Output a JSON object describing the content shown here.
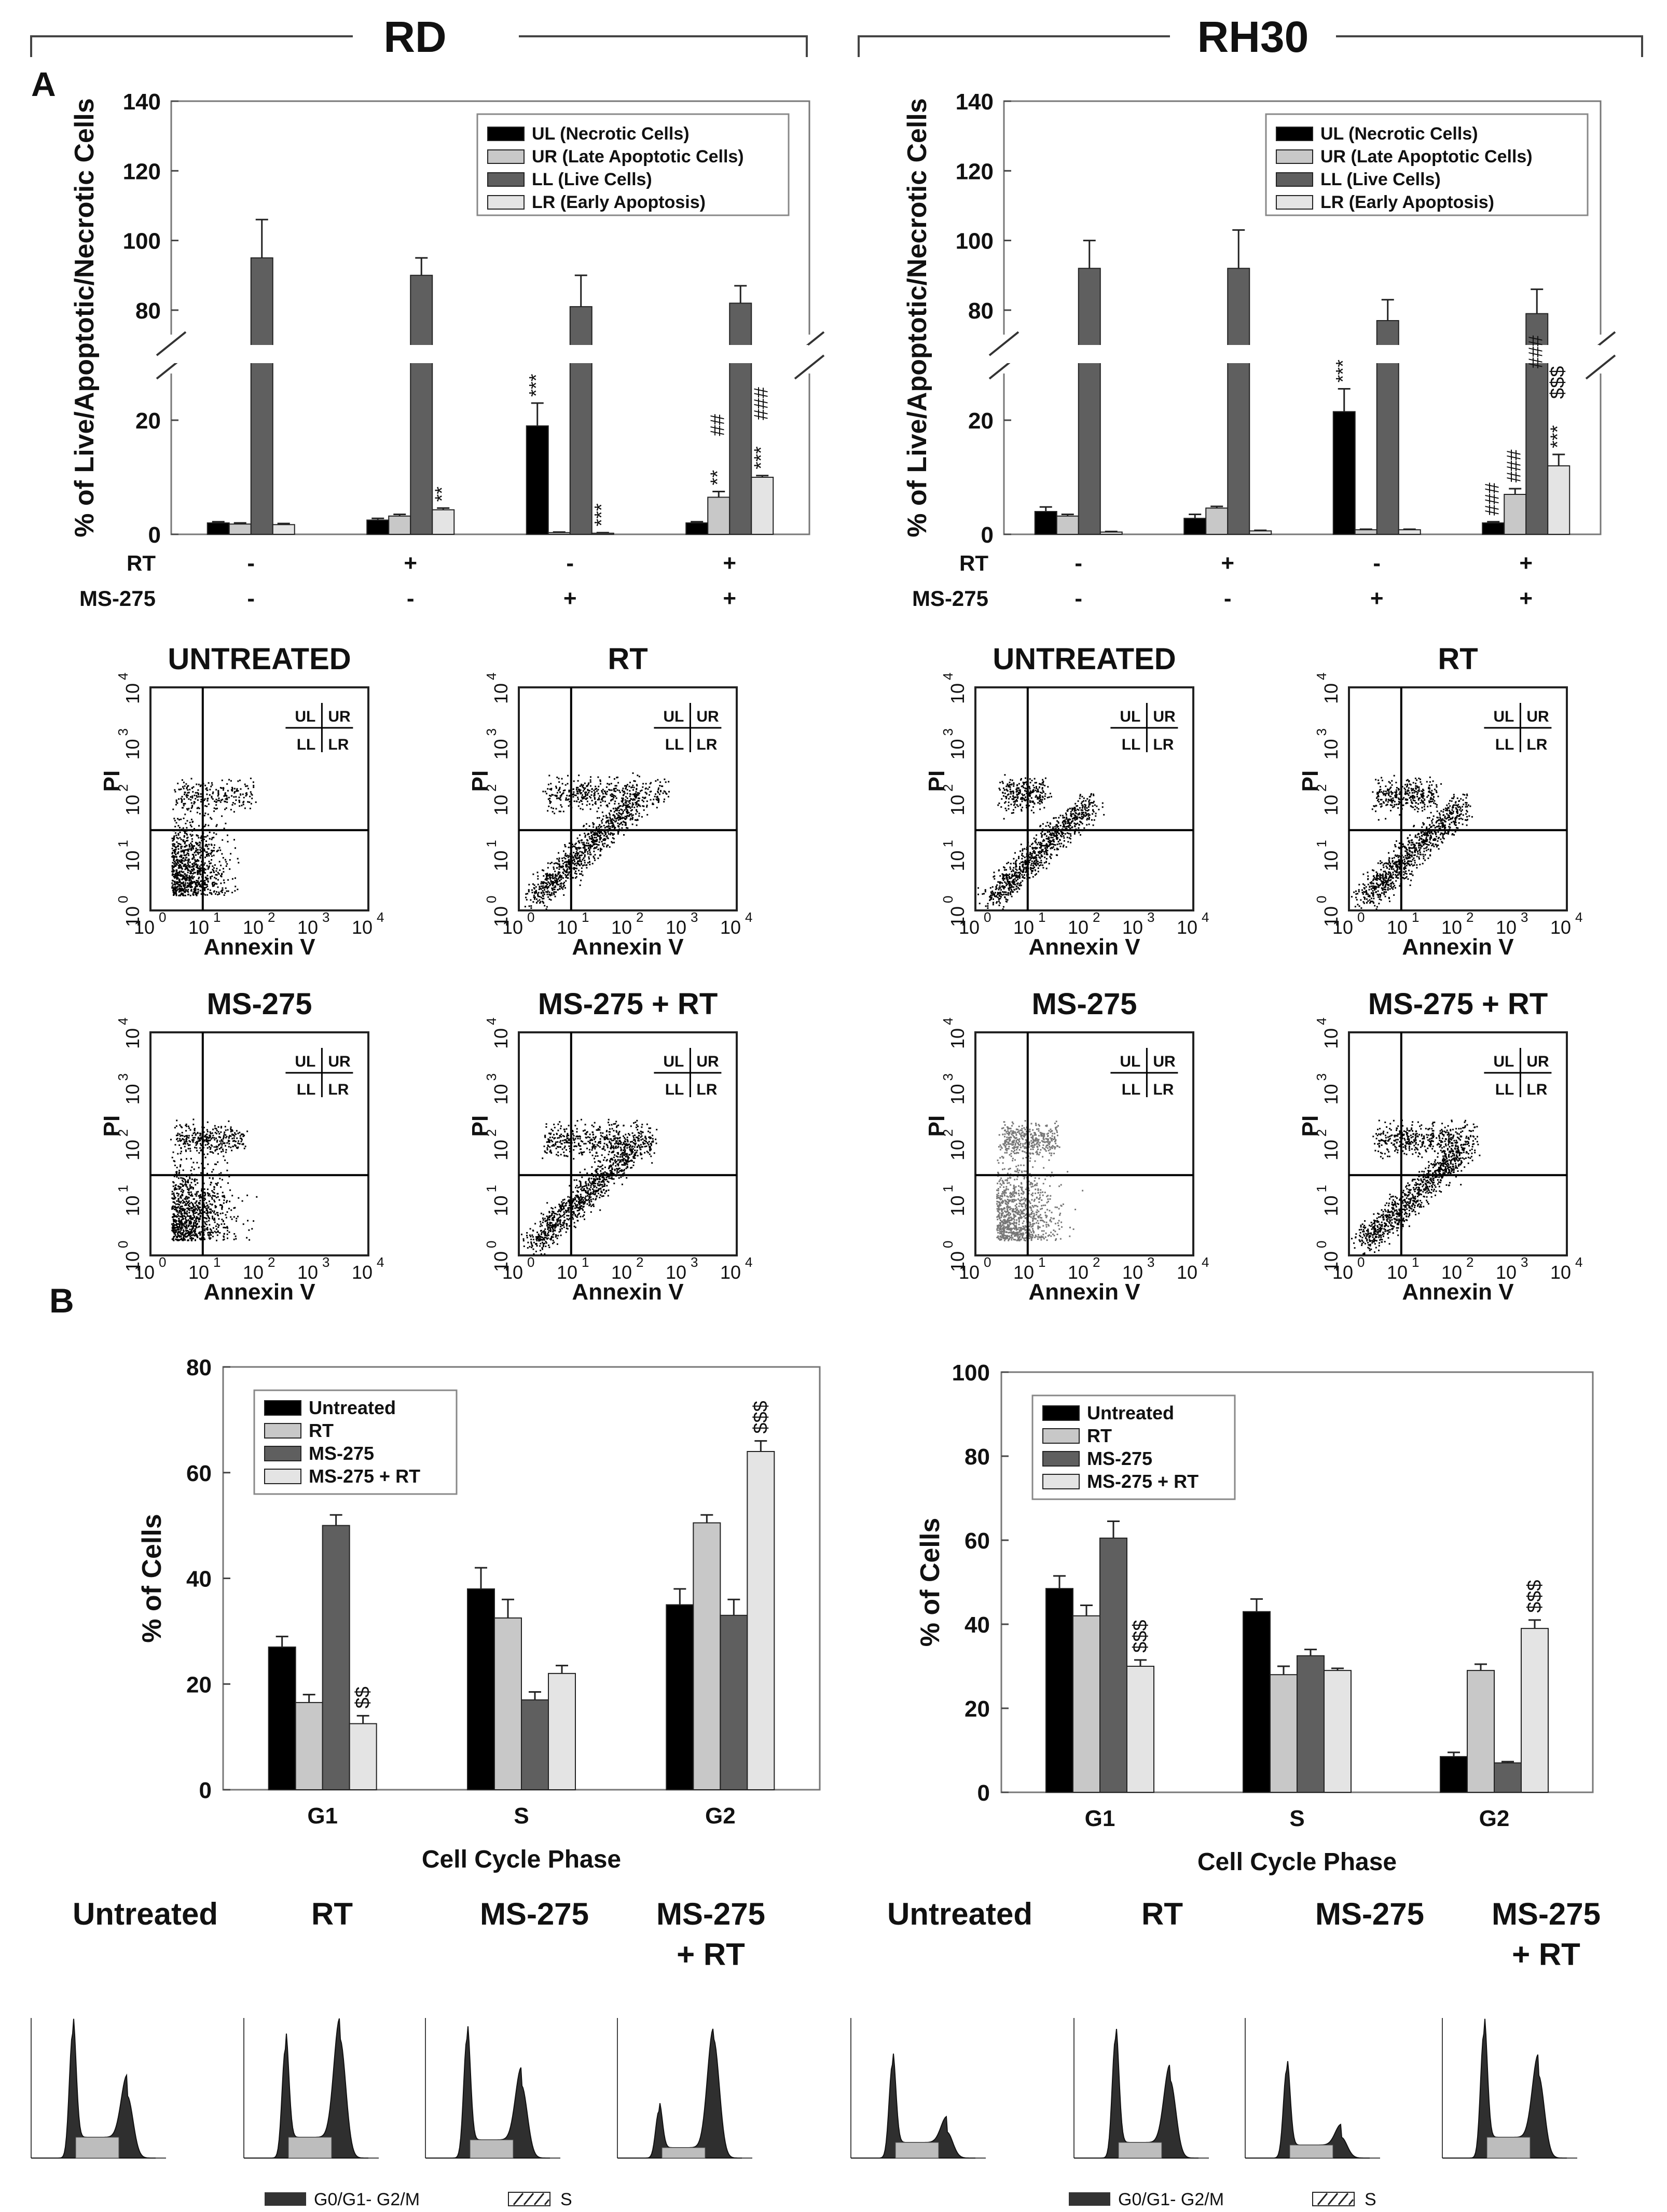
{
  "groups": [
    "RD",
    "RH30"
  ],
  "panel_labels": {
    "a": "A",
    "b": "B"
  },
  "apoptosis": {
    "ylabel": "% of Live/Apoptotic/Necrotic Cells",
    "legend": [
      "UL (Necrotic Cells)",
      "UR (Late Apoptotic Cells)",
      "LL (Live Cells)",
      "LR (Early Apoptosis)"
    ],
    "treatment_rows": [
      {
        "name": "RT",
        "signs": [
          "-",
          "+",
          "-",
          "+"
        ]
      },
      {
        "name": "MS-275",
        "signs": [
          "-",
          "-",
          "+",
          "+"
        ]
      }
    ]
  },
  "flow": {
    "titles": [
      "UNTREATED",
      "RT",
      "MS-275",
      "MS-275 + RT"
    ],
    "xlabel": "Annexin V",
    "ylabel": "PI",
    "quad": [
      "UL",
      "UR",
      "LL",
      "LR"
    ]
  },
  "cycle": {
    "ylabel": "% of Cells",
    "xlabel": "Cell Cycle Phase",
    "legend": [
      "Untreated",
      "RT",
      "MS-275",
      "MS-275 + RT"
    ],
    "histo_titles": [
      "Untreated",
      "RT",
      "MS-275",
      "MS-275\n+ RT"
    ],
    "phase_legend": [
      "G0/G1- G2/M",
      "S"
    ]
  },
  "colors": {
    "black": "#000000",
    "light": "#c8c8c8",
    "dark": "#5f5f5f",
    "pale": "#e4e4e4"
  },
  "chart_data": [
    {
      "type": "bar",
      "id": "rd-apoptosis",
      "title": "RD",
      "categories": [
        "Untreated",
        "RT",
        "MS-275",
        "MS-275 + RT"
      ],
      "series": [
        {
          "name": "UL (Necrotic Cells)",
          "values": [
            2,
            2.5,
            19,
            2
          ],
          "errors": [
            0.2,
            0.3,
            4,
            0.2
          ]
        },
        {
          "name": "UR (Late Apoptotic Cells)",
          "values": [
            1.8,
            3.2,
            0.3,
            6.5
          ],
          "errors": [
            0.2,
            0.3,
            0.1,
            1
          ]
        },
        {
          "name": "LL (Live Cells)",
          "values": [
            95,
            90,
            81,
            82
          ],
          "errors": [
            11,
            5,
            9,
            5
          ]
        },
        {
          "name": "LR (Early Apoptosis)",
          "values": [
            1.7,
            4.3,
            0.2,
            10
          ],
          "errors": [
            0.2,
            0.3,
            0.1,
            0.3
          ]
        }
      ],
      "yticks": [
        "0",
        "20",
        "80",
        "100",
        "120",
        "140"
      ],
      "ylim_lower": [
        0,
        30
      ],
      "ylim_upper": [
        70,
        140
      ],
      "annotations": [
        {
          "cat": 1,
          "series": 3,
          "text": "**"
        },
        {
          "cat": 2,
          "series": 0,
          "text": "***"
        },
        {
          "cat": 2,
          "series": 3,
          "text": "***"
        },
        {
          "cat": 3,
          "series": 1,
          "text": "**"
        },
        {
          "cat": 3,
          "series": 1,
          "text": "##"
        },
        {
          "cat": 3,
          "series": 3,
          "text": "***"
        },
        {
          "cat": 3,
          "series": 3,
          "text": "###"
        }
      ]
    },
    {
      "type": "bar",
      "id": "rh30-apoptosis",
      "title": "RH30",
      "categories": [
        "Untreated",
        "RT",
        "MS-275",
        "MS-275 + RT"
      ],
      "series": [
        {
          "name": "UL (Necrotic Cells)",
          "values": [
            4,
            2.8,
            21.5,
            2
          ],
          "errors": [
            0.8,
            0.7,
            4,
            0.2
          ]
        },
        {
          "name": "UR (Late Apoptotic Cells)",
          "values": [
            3.2,
            4.6,
            0.8,
            7
          ],
          "errors": [
            0.3,
            0.3,
            0.1,
            1
          ]
        },
        {
          "name": "LL (Live Cells)",
          "values": [
            92,
            92,
            77,
            79
          ],
          "errors": [
            8,
            11,
            6,
            7
          ]
        },
        {
          "name": "LR (Early Apoptosis)",
          "values": [
            0.4,
            0.6,
            0.8,
            12
          ],
          "errors": [
            0.1,
            0.1,
            0.1,
            2
          ]
        }
      ],
      "yticks": [
        "0",
        "20",
        "80",
        "100",
        "120",
        "140"
      ],
      "ylim_lower": [
        0,
        30
      ],
      "ylim_upper": [
        70,
        140
      ],
      "annotations": [
        {
          "cat": 2,
          "series": 0,
          "text": "***"
        },
        {
          "cat": 3,
          "series": 0,
          "text": "###"
        },
        {
          "cat": 3,
          "series": 1,
          "text": "###"
        },
        {
          "cat": 3,
          "series": 3,
          "text": "***"
        },
        {
          "cat": 3,
          "series": 3,
          "text": "$$$"
        },
        {
          "cat": 3,
          "series": 2,
          "text": "###"
        }
      ]
    },
    {
      "type": "bar",
      "id": "rd-cycle",
      "title": "RD",
      "categories": [
        "G1",
        "S",
        "G2"
      ],
      "series": [
        {
          "name": "Untreated",
          "values": [
            27,
            38,
            35
          ],
          "errors": [
            2,
            4,
            3
          ]
        },
        {
          "name": "RT",
          "values": [
            16.5,
            32.5,
            50.5
          ],
          "errors": [
            1.5,
            3.5,
            1.5
          ]
        },
        {
          "name": "MS-275",
          "values": [
            50,
            17,
            33
          ],
          "errors": [
            2,
            1.5,
            3
          ]
        },
        {
          "name": "MS-275 + RT",
          "values": [
            12.5,
            22,
            64
          ],
          "errors": [
            1.5,
            1.5,
            2
          ]
        }
      ],
      "ylim": [
        0,
        80
      ],
      "yticks": [
        "0",
        "20",
        "40",
        "60",
        "80"
      ],
      "annotations": [
        {
          "cat": 0,
          "series": 3,
          "text": "$$"
        },
        {
          "cat": 2,
          "series": 3,
          "text": "$$$"
        }
      ]
    },
    {
      "type": "bar",
      "id": "rh30-cycle",
      "title": "RH30",
      "categories": [
        "G1",
        "S",
        "G2"
      ],
      "series": [
        {
          "name": "Untreated",
          "values": [
            48.5,
            43,
            8.5
          ],
          "errors": [
            3,
            3,
            1
          ]
        },
        {
          "name": "RT",
          "values": [
            42,
            28,
            29
          ],
          "errors": [
            2.5,
            2,
            1.5
          ]
        },
        {
          "name": "MS-275",
          "values": [
            60.5,
            32.5,
            7
          ],
          "errors": [
            4,
            1.5,
            0.3
          ]
        },
        {
          "name": "MS-275 + RT",
          "values": [
            30,
            29,
            39
          ],
          "errors": [
            1.5,
            0.5,
            2
          ]
        }
      ],
      "ylim": [
        0,
        100
      ],
      "yticks": [
        "0",
        "20",
        "40",
        "60",
        "80",
        "100"
      ],
      "annotations": [
        {
          "cat": 0,
          "series": 3,
          "text": "$$$"
        },
        {
          "cat": 2,
          "series": 3,
          "text": "$$$"
        }
      ]
    }
  ]
}
